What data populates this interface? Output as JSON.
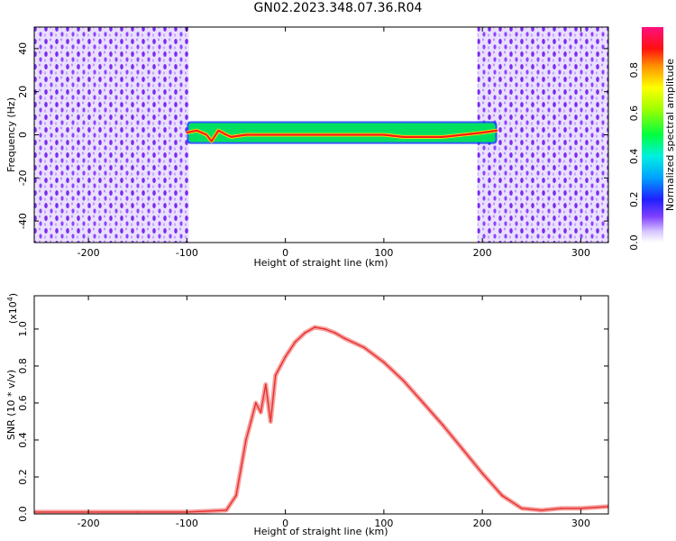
{
  "title": "GN02.2023.348.07.36.R04",
  "chart_data": [
    {
      "type": "heatmap",
      "xlabel": "Height of straight line (km)",
      "ylabel": "Frequency (Hz)",
      "xlim": [
        -255,
        328
      ],
      "ylim": [
        -50,
        50
      ],
      "xticks": [
        -200,
        -100,
        0,
        100,
        200,
        300
      ],
      "yticks": [
        -40,
        -20,
        0,
        20,
        40
      ],
      "colorbar": {
        "label": "Normalized spectral amplitude",
        "range": [
          0,
          1
        ],
        "ticks": [
          "0.0",
          "0.2",
          "0.4",
          "0.6",
          "0.8"
        ]
      },
      "regions": [
        {
          "x_range": [
            -255,
            -98
          ],
          "y_range": [
            -50,
            50
          ],
          "level": 0.1
        },
        {
          "x_range": [
            195,
            328
          ],
          "y_range": [
            -50,
            50
          ],
          "level": 0.1
        },
        {
          "x_range": [
            -100,
            215
          ],
          "y_range": [
            -3,
            5
          ],
          "level": 0.9
        }
      ],
      "ridge": [
        {
          "x": -100,
          "y": 1
        },
        {
          "x": -90,
          "y": 2
        },
        {
          "x": -80,
          "y": 0
        },
        {
          "x": -75,
          "y": -3
        },
        {
          "x": -68,
          "y": 2
        },
        {
          "x": -60,
          "y": 0
        },
        {
          "x": -55,
          "y": -1
        },
        {
          "x": -40,
          "y": 0
        },
        {
          "x": 0,
          "y": 0
        },
        {
          "x": 50,
          "y": 0
        },
        {
          "x": 100,
          "y": 0
        },
        {
          "x": 120,
          "y": -1
        },
        {
          "x": 140,
          "y": -1
        },
        {
          "x": 160,
          "y": -1
        },
        {
          "x": 180,
          "y": 0
        },
        {
          "x": 200,
          "y": 1
        },
        {
          "x": 215,
          "y": 2
        }
      ]
    },
    {
      "type": "line",
      "xlabel": "Height of straight line (km)",
      "ylabel": "SNR (10 * v/v)",
      "yscale_label": "(x10",
      "yscale_exp": "4",
      "yscale_close": ")",
      "xlim": [
        -255,
        328
      ],
      "ylim": [
        0,
        1.18
      ],
      "xticks": [
        -200,
        -100,
        0,
        100,
        200,
        300
      ],
      "yticks": [
        "0.0",
        "0.2",
        "0.4",
        "0.6",
        "0.8",
        "1.0"
      ],
      "color": "#e8312f",
      "series": [
        {
          "x": [
            -255,
            -200,
            -150,
            -100,
            -60,
            -50,
            -45,
            -40,
            -35,
            -30,
            -25,
            -20,
            -15,
            -10,
            -5,
            0,
            10,
            20,
            30,
            40,
            50,
            60,
            80,
            100,
            120,
            140,
            160,
            180,
            200,
            220,
            240,
            260,
            280,
            300,
            328
          ],
          "y": [
            0.01,
            0.01,
            0.01,
            0.01,
            0.02,
            0.1,
            0.25,
            0.4,
            0.5,
            0.6,
            0.55,
            0.7,
            0.5,
            0.75,
            0.8,
            0.85,
            0.93,
            0.98,
            1.01,
            1.0,
            0.98,
            0.95,
            0.9,
            0.82,
            0.72,
            0.6,
            0.48,
            0.35,
            0.22,
            0.1,
            0.03,
            0.02,
            0.03,
            0.03,
            0.04
          ]
        }
      ]
    }
  ]
}
